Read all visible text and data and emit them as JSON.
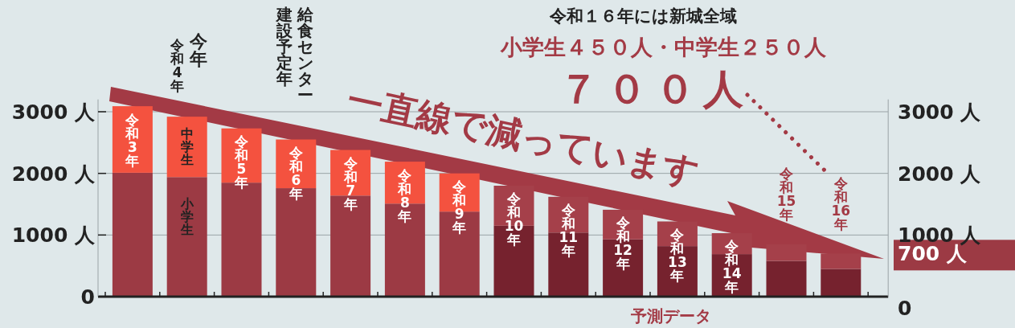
{
  "chart_data": {
    "type": "bar",
    "stacked": true,
    "title": "令和１６年には新城全域",
    "subtitle": "小学生４５０人・中学生２５０人",
    "categories": [
      "令和3年",
      "令和4年",
      "令和5年",
      "令和6年",
      "令和7年",
      "令和8年",
      "令和9年",
      "令和10年",
      "令和11年",
      "令和12年",
      "令和13年",
      "令和14年",
      "令和15年",
      "令和16年"
    ],
    "series": [
      {
        "name": "小学生",
        "colors": [
          "#9c3a44",
          "#9c3a44",
          "#9c3a44",
          "#9c3a44",
          "#9c3a44",
          "#9c3a44",
          "#9c3a44",
          "#76222e",
          "#76222e",
          "#76222e",
          "#76222e",
          "#76222e",
          "#76222e",
          "#76222e"
        ],
        "values": [
          2010,
          1940,
          1850,
          1760,
          1640,
          1510,
          1380,
          1150,
          1040,
          930,
          820,
          690,
          580,
          450
        ]
      },
      {
        "name": "中学生",
        "colors": [
          "#f4523f",
          "#f4523f",
          "#f4523f",
          "#f4523f",
          "#f4523f",
          "#f4523f",
          "#f4523f",
          "#a5404a",
          "#a5404a",
          "#a5404a",
          "#a5404a",
          "#a5404a",
          "#a5404a",
          "#a5404a"
        ],
        "values": [
          1080,
          980,
          880,
          790,
          740,
          680,
          620,
          650,
          580,
          480,
          400,
          340,
          270,
          250
        ]
      }
    ],
    "ylim": [
      0,
      3200
    ],
    "yticks": [
      {
        "value": 0,
        "label": "0"
      },
      {
        "value": 1000,
        "label": "1000 人"
      },
      {
        "value": 2000,
        "label": "2000 人"
      },
      {
        "value": 3000,
        "label": "3000 人"
      }
    ],
    "y2lim": [
      0,
      3200
    ],
    "y2ticks": [
      {
        "value": 0,
        "label": "0"
      },
      {
        "value": 700,
        "label": "700 人"
      },
      {
        "value": 1000,
        "label": "1000 人"
      },
      {
        "value": 2000,
        "label": "2000 人"
      },
      {
        "value": 3000,
        "label": "3000 人"
      }
    ],
    "grid": "y",
    "annotations": [
      "今年",
      "給食センター",
      "建設予定年",
      "７００人",
      "一直線で減っています",
      "予測データ"
    ]
  }
}
